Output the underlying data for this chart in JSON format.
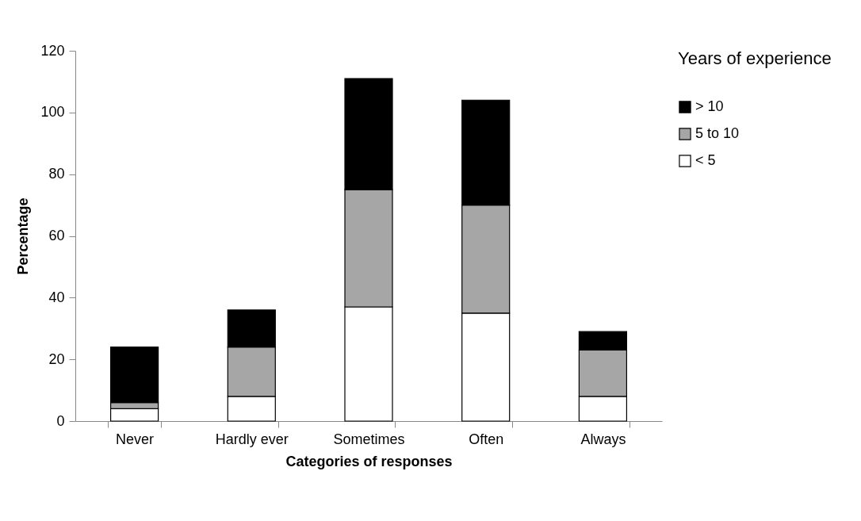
{
  "chart_data": {
    "type": "bar",
    "stacked": true,
    "xlabel": "Categories of responses",
    "ylabel": "Percentage",
    "legend_title": "Years of experience",
    "legend": "right",
    "grid": false,
    "categories": [
      "Never",
      "Hardly ever",
      "Sometimes",
      "Often",
      "Always"
    ],
    "ylim": [
      0,
      120
    ],
    "yticks": [
      0,
      20,
      40,
      60,
      80,
      100,
      120
    ],
    "series": [
      {
        "name": "< 5",
        "color": "#ffffff",
        "values": [
          4,
          8,
          37,
          35,
          8
        ]
      },
      {
        "name": "5 to 10",
        "color": "#a6a6a6",
        "values": [
          2,
          16,
          38,
          35,
          15
        ]
      },
      {
        "name": "> 10",
        "color": "#000000",
        "values": [
          18,
          12,
          36,
          34,
          6
        ]
      }
    ]
  }
}
